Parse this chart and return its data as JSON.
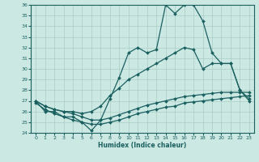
{
  "xlabel": "Humidex (Indice chaleur)",
  "xlim": [
    -0.5,
    23.5
  ],
  "ylim": [
    24,
    36
  ],
  "yticks": [
    24,
    25,
    26,
    27,
    28,
    29,
    30,
    31,
    32,
    33,
    34,
    35,
    36
  ],
  "xticks": [
    0,
    1,
    2,
    3,
    4,
    5,
    6,
    7,
    8,
    9,
    10,
    11,
    12,
    13,
    14,
    15,
    16,
    17,
    18,
    19,
    20,
    21,
    22,
    23
  ],
  "bg_color": "#cce8e2",
  "grid_color": "#aaccc6",
  "line_color": "#1a6060",
  "lines": [
    {
      "x": [
        0,
        1,
        2,
        3,
        4,
        5,
        6,
        7,
        8,
        9,
        10,
        11,
        12,
        13,
        14,
        15,
        16,
        17,
        18,
        19,
        20,
        21,
        22,
        23
      ],
      "y": [
        27,
        26,
        26,
        25.5,
        25.5,
        25,
        24.2,
        25.2,
        27.2,
        29.2,
        31.5,
        32,
        31.5,
        31.8,
        36,
        35.2,
        36,
        36,
        34.5,
        31.5,
        30.5,
        30.5,
        28,
        27
      ]
    },
    {
      "x": [
        0,
        1,
        2,
        3,
        4,
        5,
        6,
        7,
        8,
        9,
        10,
        11,
        12,
        13,
        14,
        15,
        16,
        17,
        18,
        19,
        20,
        21,
        22,
        23
      ],
      "y": [
        27,
        26.5,
        26.2,
        26,
        26,
        25.8,
        26,
        26.5,
        27.5,
        28.2,
        29,
        29.5,
        30,
        30.5,
        31,
        31.5,
        32,
        31.8,
        30,
        30.5,
        30.5,
        30.5,
        28,
        27.2
      ]
    },
    {
      "x": [
        0,
        1,
        2,
        3,
        4,
        5,
        6,
        7,
        8,
        9,
        10,
        11,
        12,
        13,
        14,
        15,
        16,
        17,
        18,
        19,
        20,
        21,
        22,
        23
      ],
      "y": [
        26.8,
        26.2,
        25.8,
        25.5,
        25.2,
        25.0,
        24.8,
        24.8,
        25.0,
        25.2,
        25.5,
        25.8,
        26.0,
        26.2,
        26.4,
        26.5,
        26.8,
        26.9,
        27.0,
        27.1,
        27.2,
        27.3,
        27.4,
        27.5
      ]
    },
    {
      "x": [
        0,
        1,
        2,
        3,
        4,
        5,
        6,
        7,
        8,
        9,
        10,
        11,
        12,
        13,
        14,
        15,
        16,
        17,
        18,
        19,
        20,
        21,
        22,
        23
      ],
      "y": [
        27,
        26.5,
        26.2,
        26.0,
        25.8,
        25.5,
        25.2,
        25.2,
        25.4,
        25.7,
        26.0,
        26.3,
        26.6,
        26.8,
        27.0,
        27.2,
        27.4,
        27.5,
        27.6,
        27.7,
        27.8,
        27.8,
        27.8,
        27.8
      ]
    }
  ]
}
